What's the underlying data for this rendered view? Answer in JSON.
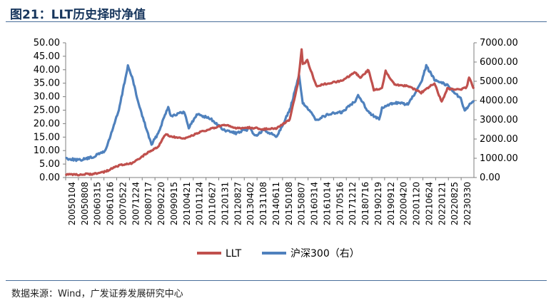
{
  "figure": {
    "title": "图21：LLT历史择时净值",
    "source": "数据来源：Wind，广发证券发展研究中心"
  },
  "colors": {
    "llt": "#c0504d",
    "csi300": "#4f81bd",
    "axis": "#7f7f7f"
  },
  "chart_data": {
    "type": "line",
    "title": "",
    "left_axis": {
      "ticks": [
        "50.00",
        "45.00",
        "40.00",
        "35.00",
        "30.00",
        "25.00",
        "20.00",
        "15.00",
        "10.00",
        "5.00",
        "0.00"
      ],
      "range": [
        0,
        50
      ]
    },
    "right_axis": {
      "ticks": [
        "7000.00",
        "6000.00",
        "5000.00",
        "4000.00",
        "3000.00",
        "2000.00",
        "1000.00",
        "0.00"
      ],
      "range": [
        0,
        7000
      ]
    },
    "x_tick_labels": [
      "20050104",
      "20050808",
      "20060315",
      "20061016",
      "20070522",
      "20071224",
      "20080717",
      "20090220",
      "20090915",
      "20100421",
      "20101124",
      "20110627",
      "20120131",
      "20120827",
      "20130402",
      "20131108",
      "20140611",
      "20150108",
      "20150807",
      "20160314",
      "20161014",
      "20170516",
      "20171212",
      "20180716",
      "20190219",
      "20190912",
      "20200420",
      "20201120",
      "20210624",
      "20220121",
      "20220825",
      "20230330"
    ],
    "x_range": [
      "20050104",
      "20230330"
    ],
    "legend": {
      "position": "bottom"
    },
    "grid": false,
    "series": [
      {
        "name": "LLT",
        "axis": "left",
        "points": [
          [
            "20050104",
            1.0
          ],
          [
            "20050808",
            1.1
          ],
          [
            "20060315",
            1.3
          ],
          [
            "20061016",
            2.2
          ],
          [
            "20070522",
            4.5
          ],
          [
            "20071224",
            5.2
          ],
          [
            "20080717",
            8.5
          ],
          [
            "20090220",
            11.5
          ],
          [
            "20090630",
            16.2
          ],
          [
            "20090915",
            15.2
          ],
          [
            "20100421",
            14.3
          ],
          [
            "20101124",
            16.5
          ],
          [
            "20110627",
            18.0
          ],
          [
            "20120131",
            19.5
          ],
          [
            "20120827",
            18.3
          ],
          [
            "20130402",
            18.5
          ],
          [
            "20131108",
            18.0
          ],
          [
            "20140611",
            18.3
          ],
          [
            "20150108",
            21.5
          ],
          [
            "20150520",
            35.0
          ],
          [
            "20150720",
            47.3
          ],
          [
            "20150807",
            42.0
          ],
          [
            "20151020",
            43.5
          ],
          [
            "20160314",
            34.0
          ],
          [
            "20161014",
            35.0
          ],
          [
            "20170516",
            36.0
          ],
          [
            "20171212",
            39.0
          ],
          [
            "20180301",
            37.0
          ],
          [
            "20180716",
            40.0
          ],
          [
            "20181010",
            32.5
          ],
          [
            "20190219",
            33.0
          ],
          [
            "20190420",
            39.5
          ],
          [
            "20190912",
            34.5
          ],
          [
            "20200420",
            34.0
          ],
          [
            "20201120",
            31.5
          ],
          [
            "20210624",
            35.0
          ],
          [
            "20211020",
            28.0
          ],
          [
            "20220121",
            33.0
          ],
          [
            "20220825",
            32.5
          ],
          [
            "20221201",
            33.5
          ],
          [
            "20230110",
            37.0
          ],
          [
            "20230330",
            33.0
          ]
        ]
      },
      {
        "name": "沪深300（右）",
        "axis": "right",
        "points": [
          [
            "20050104",
            1000
          ],
          [
            "20050808",
            900
          ],
          [
            "20060315",
            1050
          ],
          [
            "20061016",
            1400
          ],
          [
            "20070522",
            3500
          ],
          [
            "20071016",
            5800
          ],
          [
            "20071224",
            5200
          ],
          [
            "20080410",
            3800
          ],
          [
            "20080717",
            2800
          ],
          [
            "20081104",
            1700
          ],
          [
            "20090220",
            2300
          ],
          [
            "20090804",
            3700
          ],
          [
            "20090915",
            3200
          ],
          [
            "20100421",
            3400
          ],
          [
            "20100705",
            2600
          ],
          [
            "20101124",
            3300
          ],
          [
            "20110627",
            3050
          ],
          [
            "20120131",
            2450
          ],
          [
            "20120827",
            2300
          ],
          [
            "20130402",
            2550
          ],
          [
            "20130625",
            2150
          ],
          [
            "20131108",
            2450
          ],
          [
            "20140611",
            2150
          ],
          [
            "20150108",
            3500
          ],
          [
            "20150608",
            5300
          ],
          [
            "20150807",
            3900
          ],
          [
            "20160314",
            3000
          ],
          [
            "20161014",
            3300
          ],
          [
            "20170516",
            3400
          ],
          [
            "20171212",
            4000
          ],
          [
            "20180126",
            4300
          ],
          [
            "20180716",
            3400
          ],
          [
            "20190104",
            3000
          ],
          [
            "20190219",
            3600
          ],
          [
            "20190912",
            3900
          ],
          [
            "20200420",
            3800
          ],
          [
            "20201120",
            4900
          ],
          [
            "20210210",
            5800
          ],
          [
            "20210624",
            5100
          ],
          [
            "20220121",
            4800
          ],
          [
            "20220825",
            4100
          ],
          [
            "20221031",
            3500
          ],
          [
            "20230330",
            4000
          ]
        ]
      }
    ]
  }
}
